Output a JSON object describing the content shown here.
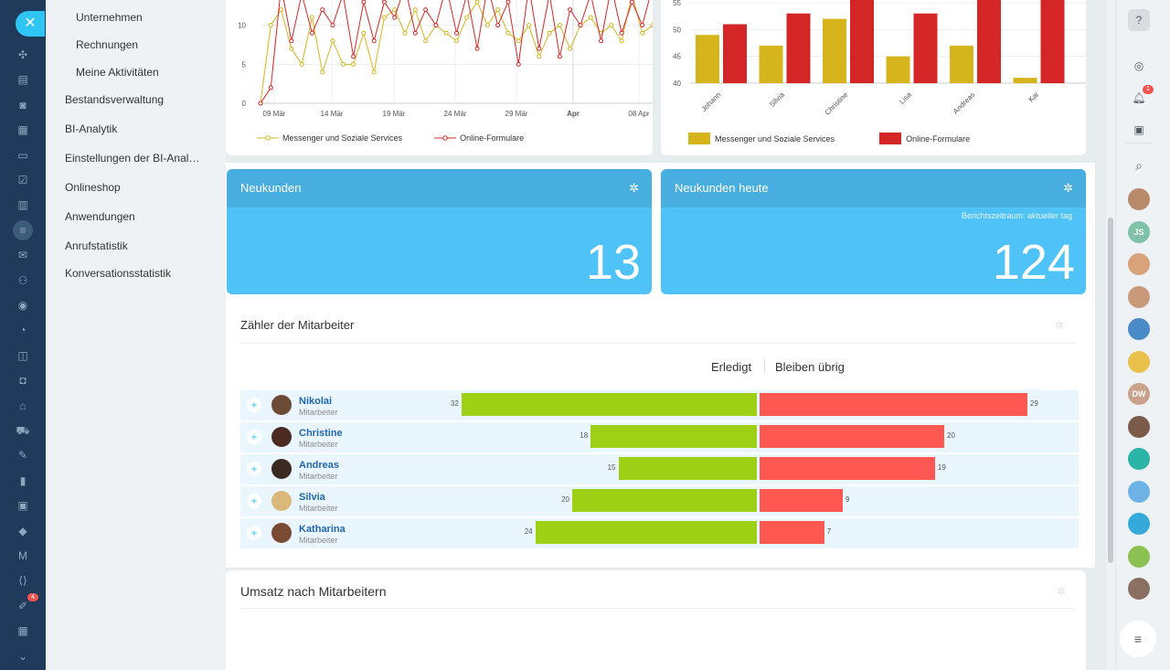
{
  "rail": {
    "close_symbol": "✕",
    "icons": [
      "crm-icon",
      "feed-icon",
      "chat-icon",
      "calendar-icon",
      "docs-icon",
      "tasks-icon",
      "drive-icon",
      "filter-icon",
      "mail-icon",
      "group-icon",
      "target-icon",
      "analytics-icon",
      "contact-center-icon",
      "robot-icon",
      "store-icon",
      "cart-icon",
      "sign-icon",
      "chart-icon",
      "id-card-icon",
      "box-icon",
      "marketing-icon",
      "code-icon",
      "edit-icon",
      "calendar-grid-icon",
      "more-icon"
    ],
    "edit_badge": "4"
  },
  "menu": {
    "items": [
      {
        "label": "Unternehmen",
        "sub": true
      },
      {
        "label": "Rechnungen",
        "sub": true
      },
      {
        "label": "Meine Aktivitäten",
        "sub": true
      },
      {
        "label": "Bestandsverwaltung",
        "sub": false
      },
      {
        "label": "BI-Analytik",
        "sub": false
      },
      {
        "label": "Einstellungen der BI-Anal…",
        "sub": false
      },
      {
        "label": "Onlineshop",
        "sub": false
      },
      {
        "label": "Anwendungen",
        "sub": false
      },
      {
        "label": "Anrufstatistik",
        "sub": false
      },
      {
        "label": "Konversationsstatistik",
        "sub": false
      }
    ]
  },
  "colors": {
    "messenger": "#d6b51c",
    "online_forms": "#d42626",
    "done": "#9ed116",
    "remaining": "#ff5752",
    "tile": "#4fc3f7",
    "tile_head": "#48aee0"
  },
  "chart_data": [
    {
      "type": "line",
      "xticks": [
        "09 Mär",
        "14 Mär",
        "19 Mär",
        "24 Mär",
        "29 Mär",
        "Apr",
        "08 Apr"
      ],
      "yticks": [
        "0",
        "5",
        "10"
      ],
      "ylim": [
        0,
        15
      ],
      "series": [
        {
          "name": "Messenger und Soziale Services",
          "values": [
            0,
            10,
            12,
            7,
            5,
            11,
            4,
            8,
            5,
            5,
            9,
            4,
            11,
            12,
            9,
            12,
            8,
            10,
            9,
            8,
            11,
            13,
            10,
            12,
            9,
            8,
            10,
            6,
            9,
            10,
            7,
            10,
            11,
            9,
            10,
            8,
            14,
            9,
            10
          ]
        },
        {
          "name": "Online-Formulare",
          "values": [
            0,
            2,
            15,
            8,
            14,
            9,
            12,
            10,
            14,
            6,
            13,
            8,
            13,
            11,
            15,
            9,
            12,
            10,
            15,
            9,
            14,
            7,
            15,
            10,
            13,
            5,
            15,
            7,
            14,
            6,
            12,
            10,
            14,
            8,
            15,
            9,
            13,
            10,
            15
          ]
        }
      ]
    },
    {
      "type": "bar",
      "categories": [
        "Johann",
        "Silvia",
        "Christine",
        "Lisa",
        "Andreas",
        "Kai"
      ],
      "yticks": [
        "40",
        "45",
        "50",
        "55"
      ],
      "ylim": [
        40,
        55
      ],
      "series": [
        {
          "name": "Messenger und Soziale Services",
          "values": [
            49,
            47,
            52,
            45,
            47,
            41
          ]
        },
        {
          "name": "Online-Formulare",
          "values": [
            51,
            53,
            56,
            53,
            56,
            56
          ]
        }
      ]
    },
    {
      "type": "bar",
      "title": "Zähler der Mitarbeiter",
      "categories": [
        "Nikolai",
        "Christine",
        "Andreas",
        "Silvia",
        "Katharina"
      ],
      "series": [
        {
          "name": "Erledigt",
          "values": [
            32,
            18,
            15,
            20,
            24
          ]
        },
        {
          "name": "Bleiben übrig",
          "values": [
            29,
            20,
            19,
            9,
            7
          ]
        }
      ]
    }
  ],
  "legend": {
    "messenger": "Messenger und Soziale Services",
    "forms": "Online-Formulare"
  },
  "tiles": {
    "new_clients": {
      "title": "Neukunden",
      "value": "13"
    },
    "new_clients_today": {
      "title": "Neukunden heute",
      "note": "Berichtszeitraum: aktueller tag",
      "value": "124"
    }
  },
  "employees_widget": {
    "title": "Zähler der Mitarbeiter",
    "col_done": "Erledigt",
    "col_remaining": "Bleiben übrig",
    "rows": [
      {
        "name": "Nikolai",
        "role": "Mitarbeiter",
        "done": 32,
        "remaining": 29,
        "avatar_color": "#6b4a36"
      },
      {
        "name": "Christine",
        "role": "Mitarbeiter",
        "done": 18,
        "remaining": 20,
        "avatar_color": "#4a2a22"
      },
      {
        "name": "Andreas",
        "role": "Mitarbeiter",
        "done": 15,
        "remaining": 19,
        "avatar_color": "#3a2a22"
      },
      {
        "name": "Silvia",
        "role": "Mitarbeiter",
        "done": 20,
        "remaining": 9,
        "avatar_color": "#d9b87a"
      },
      {
        "name": "Katharina",
        "role": "Mitarbeiter",
        "done": 24,
        "remaining": 7,
        "avatar_color": "#7a4a32"
      }
    ]
  },
  "revenue_widget": {
    "title": "Umsatz nach Mitarbeitern"
  },
  "right_rail": {
    "notif_badge": "1",
    "avatars": [
      {
        "name": "user-avatar",
        "color": "#b98a6a",
        "initials": ""
      },
      {
        "name": "user-avatar-js",
        "color": "#7fc2a7",
        "initials": "JS"
      },
      {
        "name": "group-avatar",
        "color": "#d8a27a",
        "initials": ""
      },
      {
        "name": "group-avatar",
        "color": "#c89a7a",
        "initials": ""
      },
      {
        "name": "group-avatar",
        "color": "#4a8ac7",
        "initials": ""
      },
      {
        "name": "chat-avatar",
        "color": "#e8c04a",
        "initials": ""
      },
      {
        "name": "user-avatar-dw",
        "color": "#c9a28c",
        "initials": "DW"
      },
      {
        "name": "user-avatar",
        "color": "#7a5a48",
        "initials": ""
      },
      {
        "name": "chat-avatar",
        "color": "#2bb5a8",
        "initials": ""
      },
      {
        "name": "group-avatar",
        "color": "#6db3e6",
        "initials": ""
      },
      {
        "name": "bookmark-avatar",
        "color": "#35a9d9",
        "initials": ""
      },
      {
        "name": "doc-avatar",
        "color": "#8cc152",
        "initials": ""
      },
      {
        "name": "user-avatar",
        "color": "#8a7060",
        "initials": ""
      }
    ]
  }
}
